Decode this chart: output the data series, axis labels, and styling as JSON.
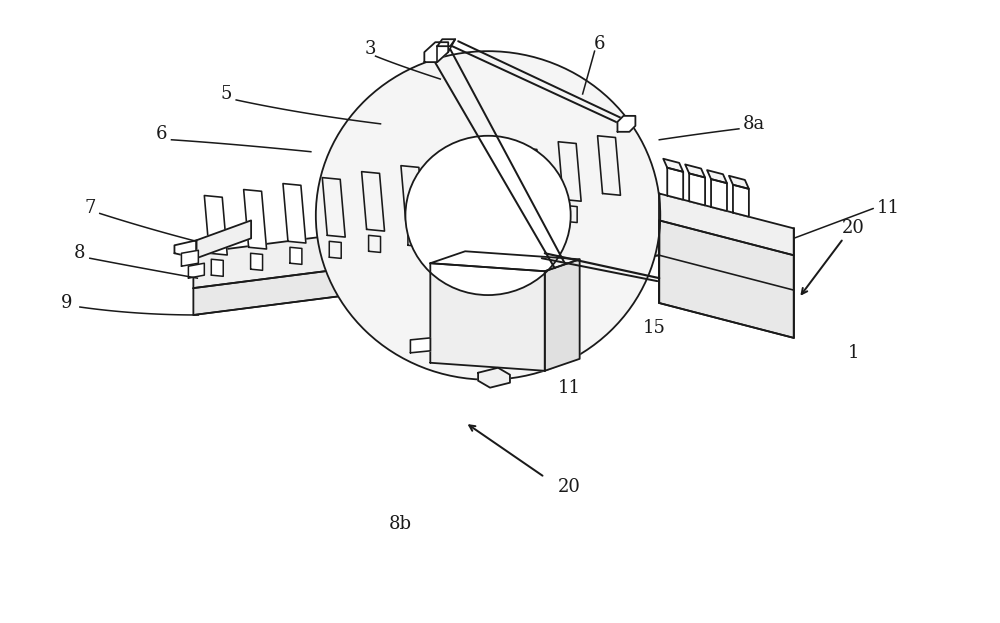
{
  "bg_color": "#ffffff",
  "line_color": "#1a1a1a",
  "line_width": 1.3,
  "fontsize": 13,
  "figsize": [
    10.0,
    6.23
  ],
  "dpi": 100
}
